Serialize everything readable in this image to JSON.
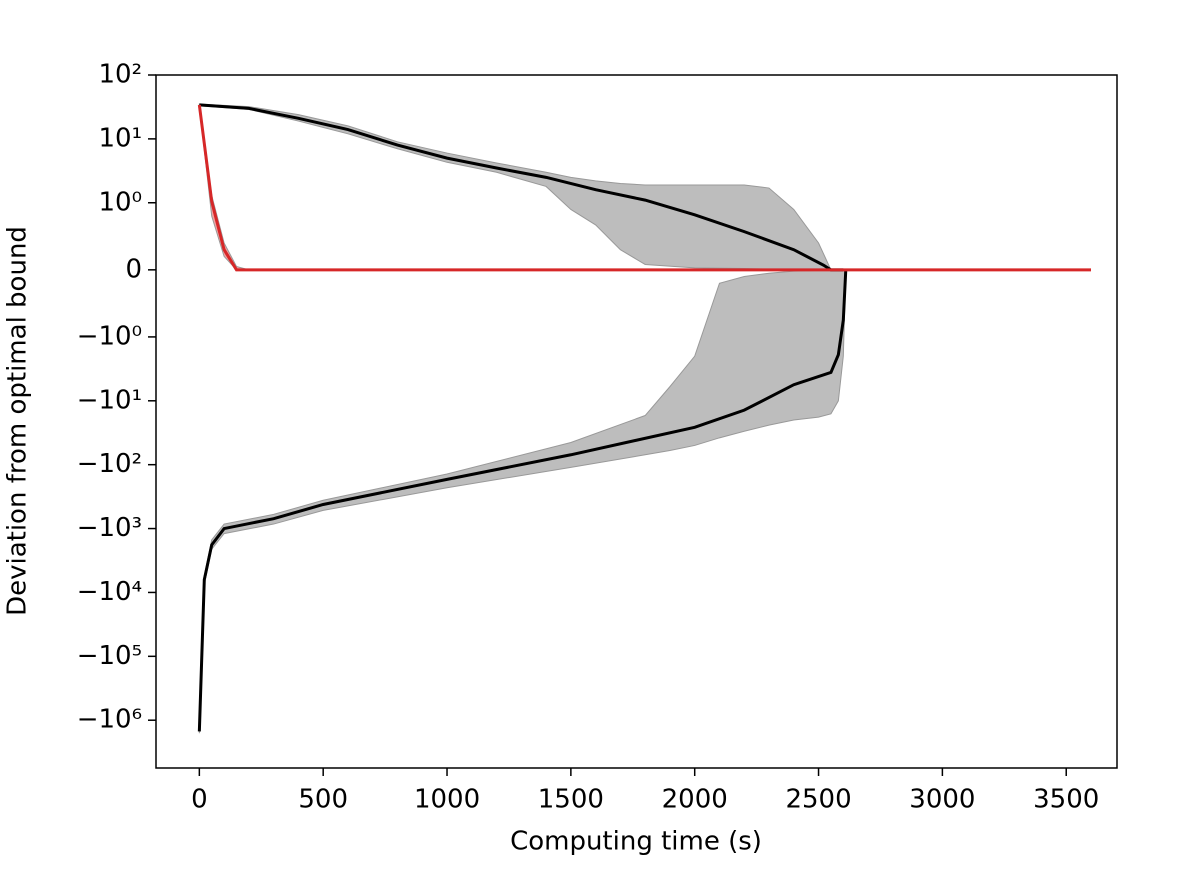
{
  "chart_data": {
    "type": "line",
    "xlabel": "Computing time (s)",
    "ylabel": "Deviation from optimal bound",
    "xlim": [
      -175,
      3705
    ],
    "ylim": [
      -5600000,
      100
    ],
    "yscale": "symlog",
    "xticks": [
      0,
      500,
      1000,
      1500,
      2000,
      2500,
      3000,
      3500
    ],
    "yticks": [
      {
        "value": 100,
        "label": "10²"
      },
      {
        "value": 10,
        "label": "10¹"
      },
      {
        "value": 1,
        "label": "10⁰"
      },
      0,
      {
        "value": -1,
        "label": "−10⁰"
      },
      {
        "value": -10,
        "label": "−10¹"
      },
      {
        "value": -100,
        "label": "−10²"
      },
      {
        "value": -1000,
        "label": "−10³"
      },
      {
        "value": -10000,
        "label": "−10⁴"
      },
      {
        "value": -100000,
        "label": "−10⁵"
      },
      {
        "value": -1000000,
        "label": "−10⁶"
      }
    ],
    "series": [
      {
        "type": "band",
        "color": "#bdbdbd",
        "x": [
          0,
          200,
          400,
          600,
          800,
          1000,
          1200,
          1400,
          1500,
          1600,
          1700,
          1800,
          2000,
          2200,
          2300,
          2400,
          2500,
          2550
        ],
        "upper": [
          35,
          32,
          24,
          16,
          9,
          6,
          4.2,
          3,
          2.5,
          2.2,
          2,
          1.9,
          1.9,
          1.9,
          1.7,
          0.9,
          0.4,
          0
        ],
        "lower": [
          33,
          29,
          19,
          12,
          7,
          4.3,
          3,
          1.8,
          0.9,
          0.67,
          0.3,
          0.08,
          0.03,
          0.02,
          0.01,
          0.01,
          0,
          0
        ]
      },
      {
        "type": "band",
        "color": "#bdbdbd",
        "x": [
          0,
          20,
          50,
          100,
          300,
          500,
          1000,
          1500,
          1800,
          1900,
          2000,
          2100,
          2200,
          2300,
          2400,
          2500,
          2550,
          2580,
          2600,
          2610
        ],
        "upper": [
          -1400000,
          -5500,
          -1500,
          -850,
          -600,
          -360,
          -140,
          -45,
          -17,
          -6,
          -2,
          -0.2,
          -0.1,
          -0.05,
          -0.02,
          -0.01,
          0,
          0,
          0,
          0
        ],
        "lower": [
          -1600000,
          -7500,
          -2100,
          -1200,
          -850,
          -520,
          -230,
          -110,
          -70,
          -60,
          -50,
          -38,
          -30,
          -24,
          -20,
          -18,
          -16,
          -10,
          -2,
          0
        ]
      },
      {
        "type": "line",
        "color": "#000000",
        "x": [
          0,
          200,
          400,
          600,
          800,
          1000,
          1200,
          1400,
          1600,
          1800,
          2000,
          2200,
          2400,
          2520,
          2550,
          2600
        ],
        "values": [
          34,
          30,
          21,
          14,
          8,
          5,
          3.5,
          2.5,
          1.6,
          1.1,
          0.82,
          0.57,
          0.3,
          0.07,
          0,
          0
        ]
      },
      {
        "type": "line",
        "color": "#000000",
        "x": [
          0,
          20,
          50,
          100,
          300,
          500,
          1000,
          1500,
          2000,
          2200,
          2400,
          2550,
          2580,
          2600,
          2610
        ],
        "values": [
          -1500000,
          -6300,
          -1800,
          -1000,
          -700,
          -420,
          -170,
          -70,
          -26,
          -14,
          -5.6,
          -3.6,
          -1.9,
          -0.75,
          0
        ]
      },
      {
        "type": "band",
        "color": "#f4a0a0",
        "x": [
          0,
          50,
          100,
          150,
          200
        ],
        "upper": [
          34,
          1.3,
          0.4,
          0.05,
          0
        ],
        "lower": [
          33,
          0.8,
          0.2,
          0,
          0
        ]
      },
      {
        "type": "line",
        "color": "#d62728",
        "x": [
          0,
          50,
          100,
          150,
          3600
        ],
        "values": [
          34,
          1.05,
          0.3,
          0,
          0
        ]
      }
    ]
  }
}
